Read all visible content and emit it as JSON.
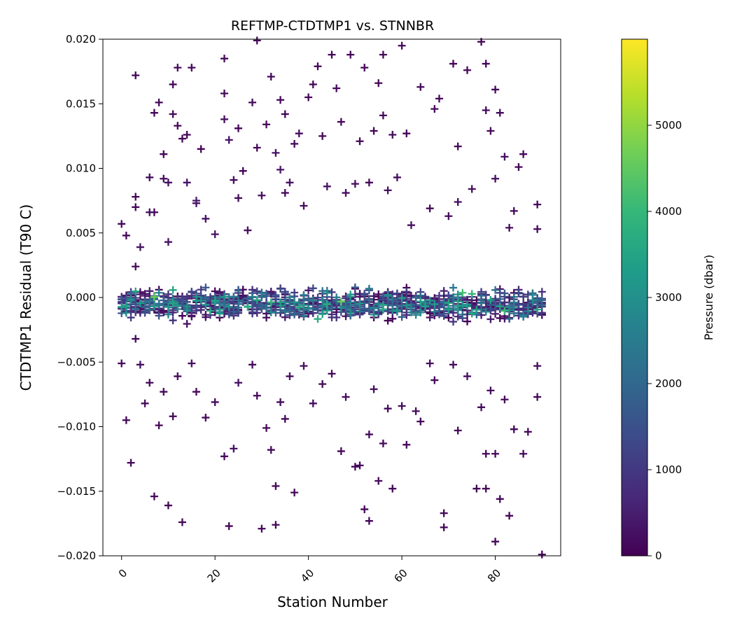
{
  "chart_data": {
    "type": "scatter",
    "title": "REFTMP-CTDTMP1 vs. STNNBR",
    "xlabel": "Station Number",
    "ylabel": "CTDTMP1 Residual (T90 C)",
    "xlim": [
      -4,
      94
    ],
    "ylim": [
      -0.02,
      0.02
    ],
    "x_ticks": [
      0,
      20,
      40,
      60,
      80
    ],
    "x_tick_labels": [
      "0",
      "20",
      "40",
      "60",
      "80"
    ],
    "y_ticks": [
      -0.02,
      -0.015,
      -0.01,
      -0.005,
      0.0,
      0.005,
      0.01,
      0.015,
      0.02
    ],
    "y_tick_labels": [
      "−0.020",
      "−0.015",
      "−0.010",
      "−0.005",
      "0.000",
      "0.005",
      "0.010",
      "0.015",
      "0.020"
    ],
    "marker": "+",
    "grid": false,
    "colorbar": {
      "label": "Pressure (dbar)",
      "range": [
        0,
        6000
      ],
      "ticks": [
        0,
        1000,
        2000,
        3000,
        4000,
        5000
      ],
      "tick_labels": [
        "0",
        "1000",
        "2000",
        "3000",
        "4000",
        "5000"
      ],
      "colormap": "viridis",
      "colors": [
        "#440154",
        "#482878",
        "#3e4989",
        "#31688e",
        "#26828e",
        "#1f9e89",
        "#35b779",
        "#6ece58",
        "#b5de2b",
        "#fde725"
      ]
    },
    "points": [
      [
        0,
        0.0057,
        120
      ],
      [
        1,
        0.0048,
        90
      ],
      [
        3,
        0.0172,
        60
      ],
      [
        3,
        0.0078,
        80
      ],
      [
        3,
        0.007,
        110
      ],
      [
        3,
        0.0024,
        150
      ],
      [
        4,
        0.0039,
        300
      ],
      [
        6,
        0.0066,
        200
      ],
      [
        6,
        0.0093,
        180
      ],
      [
        7,
        0.0066,
        90
      ],
      [
        7,
        0.0143,
        100
      ],
      [
        8,
        0.0151,
        110
      ],
      [
        9,
        0.0092,
        120
      ],
      [
        9,
        0.0111,
        80
      ],
      [
        10,
        0.0089,
        220
      ],
      [
        10,
        0.0043,
        260
      ],
      [
        11,
        0.0165,
        140
      ],
      [
        11,
        0.0142,
        100
      ],
      [
        12,
        0.0178,
        150
      ],
      [
        12,
        0.0133,
        90
      ],
      [
        13,
        0.0123,
        70
      ],
      [
        14,
        0.0126,
        110
      ],
      [
        14,
        0.0089,
        330
      ],
      [
        15,
        0.0178,
        90
      ],
      [
        16,
        0.0073,
        180
      ],
      [
        16,
        0.0075,
        420
      ],
      [
        17,
        0.0115,
        60
      ],
      [
        18,
        0.0061,
        250
      ],
      [
        20,
        0.0049,
        320
      ],
      [
        22,
        0.0185,
        140
      ],
      [
        22,
        0.0158,
        100
      ],
      [
        22,
        0.0138,
        230
      ],
      [
        23,
        0.0122,
        280
      ],
      [
        24,
        0.0091,
        150
      ],
      [
        25,
        0.0131,
        80
      ],
      [
        25,
        0.0077,
        170
      ],
      [
        26,
        0.0098,
        90
      ],
      [
        27,
        0.0052,
        220
      ],
      [
        28,
        0.0151,
        160
      ],
      [
        29,
        0.0116,
        70
      ],
      [
        29,
        0.0199,
        120
      ],
      [
        30,
        0.0079,
        180
      ],
      [
        31,
        0.0134,
        100
      ],
      [
        32,
        0.0171,
        110
      ],
      [
        33,
        0.0112,
        250
      ],
      [
        34,
        0.0153,
        90
      ],
      [
        34,
        0.0099,
        340
      ],
      [
        35,
        0.0142,
        70
      ],
      [
        35,
        0.0081,
        150
      ],
      [
        36,
        0.0089,
        280
      ],
      [
        37,
        0.0119,
        160
      ],
      [
        38,
        0.0127,
        200
      ],
      [
        39,
        0.0071,
        210
      ],
      [
        40,
        0.0155,
        110
      ],
      [
        41,
        0.0165,
        120
      ],
      [
        42,
        0.0179,
        80
      ],
      [
        43,
        0.0125,
        90
      ],
      [
        44,
        0.0086,
        300
      ],
      [
        45,
        0.0188,
        100
      ],
      [
        46,
        0.0162,
        140
      ],
      [
        47,
        0.0136,
        90
      ],
      [
        48,
        0.0081,
        210
      ],
      [
        49,
        0.0188,
        60
      ],
      [
        50,
        0.0088,
        230
      ],
      [
        51,
        0.0121,
        110
      ],
      [
        52,
        0.0178,
        90
      ],
      [
        53,
        0.0089,
        130
      ],
      [
        54,
        0.0129,
        70
      ],
      [
        55,
        0.0166,
        110
      ],
      [
        56,
        0.0141,
        90
      ],
      [
        56,
        0.0188,
        100
      ],
      [
        57,
        0.0083,
        220
      ],
      [
        58,
        0.0126,
        150
      ],
      [
        59,
        0.0093,
        170
      ],
      [
        60,
        0.0195,
        120
      ],
      [
        61,
        0.0127,
        80
      ],
      [
        62,
        0.0056,
        260
      ],
      [
        64,
        0.0163,
        150
      ],
      [
        66,
        0.0069,
        130
      ],
      [
        67,
        0.0146,
        140
      ],
      [
        68,
        0.0154,
        90
      ],
      [
        70,
        0.0063,
        170
      ],
      [
        71,
        0.0181,
        60
      ],
      [
        72,
        0.0117,
        90
      ],
      [
        72,
        0.0074,
        220
      ],
      [
        74,
        0.0176,
        110
      ],
      [
        75,
        0.0084,
        180
      ],
      [
        77,
        0.0198,
        60
      ],
      [
        78,
        0.0181,
        80
      ],
      [
        78,
        0.0145,
        120
      ],
      [
        79,
        0.0129,
        100
      ],
      [
        80,
        0.0161,
        110
      ],
      [
        80,
        0.0092,
        190
      ],
      [
        81,
        0.0143,
        150
      ],
      [
        82,
        0.0109,
        220
      ],
      [
        83,
        0.0054,
        160
      ],
      [
        84,
        0.0067,
        130
      ],
      [
        85,
        0.0101,
        90
      ],
      [
        86,
        0.0111,
        110
      ],
      [
        89,
        0.0072,
        70
      ],
      [
        89,
        0.0053,
        110
      ],
      [
        0,
        -0.0051,
        120
      ],
      [
        1,
        -0.0095,
        80
      ],
      [
        2,
        -0.0128,
        60
      ],
      [
        3,
        -0.0032,
        150
      ],
      [
        4,
        -0.0052,
        200
      ],
      [
        5,
        -0.0082,
        130
      ],
      [
        6,
        -0.0066,
        110
      ],
      [
        7,
        -0.0154,
        90
      ],
      [
        8,
        -0.0099,
        100
      ],
      [
        9,
        -0.0073,
        140
      ],
      [
        10,
        -0.0161,
        80
      ],
      [
        11,
        -0.0092,
        120
      ],
      [
        12,
        -0.0061,
        160
      ],
      [
        13,
        -0.0174,
        90
      ],
      [
        15,
        -0.0051,
        210
      ],
      [
        16,
        -0.0073,
        130
      ],
      [
        18,
        -0.0093,
        150
      ],
      [
        20,
        -0.0081,
        180
      ],
      [
        22,
        -0.0123,
        120
      ],
      [
        23,
        -0.0177,
        80
      ],
      [
        24,
        -0.0117,
        250
      ],
      [
        25,
        -0.0066,
        200
      ],
      [
        28,
        -0.0052,
        140
      ],
      [
        29,
        -0.0076,
        110
      ],
      [
        30,
        -0.0179,
        90
      ],
      [
        31,
        -0.0101,
        130
      ],
      [
        32,
        -0.0118,
        150
      ],
      [
        33,
        -0.0146,
        90
      ],
      [
        33,
        -0.0176,
        100
      ],
      [
        34,
        -0.0081,
        170
      ],
      [
        35,
        -0.0094,
        130
      ],
      [
        36,
        -0.0061,
        220
      ],
      [
        37,
        -0.0151,
        110
      ],
      [
        39,
        -0.0053,
        190
      ],
      [
        41,
        -0.0082,
        160
      ],
      [
        43,
        -0.0067,
        120
      ],
      [
        45,
        -0.0059,
        140
      ],
      [
        47,
        -0.0119,
        110
      ],
      [
        48,
        -0.0077,
        180
      ],
      [
        50,
        -0.0131,
        100
      ],
      [
        51,
        -0.013,
        80
      ],
      [
        52,
        -0.0164,
        90
      ],
      [
        53,
        -0.0173,
        110
      ],
      [
        53,
        -0.0106,
        130
      ],
      [
        54,
        -0.0071,
        200
      ],
      [
        55,
        -0.0142,
        120
      ],
      [
        56,
        -0.0113,
        90
      ],
      [
        57,
        -0.0086,
        150
      ],
      [
        58,
        -0.0148,
        90
      ],
      [
        60,
        -0.0084,
        170
      ],
      [
        61,
        -0.0114,
        110
      ],
      [
        63,
        -0.0088,
        130
      ],
      [
        64,
        -0.0096,
        90
      ],
      [
        66,
        -0.0051,
        200
      ],
      [
        67,
        -0.0064,
        140
      ],
      [
        69,
        -0.0167,
        100
      ],
      [
        69,
        -0.0178,
        90
      ],
      [
        71,
        -0.0052,
        180
      ],
      [
        72,
        -0.0103,
        130
      ],
      [
        74,
        -0.0061,
        200
      ],
      [
        76,
        -0.0148,
        80
      ],
      [
        77,
        -0.0085,
        150
      ],
      [
        78,
        -0.0121,
        110
      ],
      [
        78,
        -0.0148,
        90
      ],
      [
        79,
        -0.0072,
        160
      ],
      [
        80,
        -0.0189,
        80
      ],
      [
        80,
        -0.0121,
        100
      ],
      [
        81,
        -0.0156,
        120
      ],
      [
        82,
        -0.0079,
        140
      ],
      [
        83,
        -0.0169,
        90
      ],
      [
        84,
        -0.0102,
        110
      ],
      [
        86,
        -0.0121,
        130
      ],
      [
        87,
        -0.0104,
        100
      ],
      [
        89,
        -0.0053,
        150
      ],
      [
        89,
        -0.0077,
        120
      ],
      [
        90,
        -0.0199,
        80
      ]
    ]
  }
}
